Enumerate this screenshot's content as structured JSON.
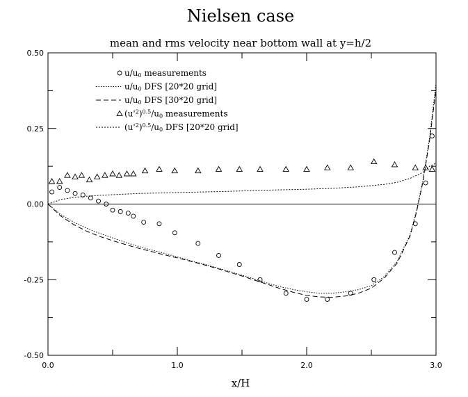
{
  "chart_data": {
    "type": "line",
    "title": "Nielsen case",
    "subtitle": "mean and rms velocity near bottom wall at y=h/2",
    "xlabel": "x/H",
    "ylabel": "",
    "xlim": [
      0.0,
      3.0
    ],
    "ylim": [
      -0.5,
      0.5
    ],
    "x_ticks": [
      "0.0",
      "1.0",
      "2.0",
      "3.0"
    ],
    "y_ticks": [
      "-0.50",
      "-0.25",
      "0.00",
      "0.25",
      "0.50"
    ],
    "legend_position": "top-left",
    "series": [
      {
        "name": "u/u0 measurements",
        "legend": {
          "main": "u/u",
          "sub": "0",
          "tail": " measurements"
        },
        "style": "circle",
        "x": [
          0.03,
          0.09,
          0.15,
          0.21,
          0.27,
          0.33,
          0.39,
          0.45,
          0.5,
          0.56,
          0.62,
          0.66,
          0.74,
          0.86,
          0.98,
          1.16,
          1.32,
          1.48,
          1.64,
          1.84,
          2.0,
          2.16,
          2.34,
          2.52,
          2.68,
          2.84,
          2.92,
          2.97
        ],
        "y": [
          0.04,
          0.055,
          0.045,
          0.035,
          0.03,
          0.02,
          0.01,
          0.0,
          -0.02,
          -0.025,
          -0.03,
          -0.04,
          -0.06,
          -0.065,
          -0.095,
          -0.13,
          -0.17,
          -0.2,
          -0.25,
          -0.295,
          -0.315,
          -0.315,
          -0.295,
          -0.25,
          -0.16,
          -0.065,
          0.07,
          0.225
        ]
      },
      {
        "name": "u/u0 DFS [20*20 grid]",
        "legend": {
          "main": "u/u",
          "sub": "0",
          "tail": " DFS [20*20 grid]"
        },
        "style": "dotted",
        "x": [
          0.0,
          0.1,
          0.2,
          0.3,
          0.4,
          0.5,
          0.6,
          0.7,
          0.8,
          0.9,
          1.0,
          1.1,
          1.2,
          1.3,
          1.4,
          1.5,
          1.6,
          1.7,
          1.8,
          1.9,
          2.0,
          2.1,
          2.2,
          2.3,
          2.4,
          2.5,
          2.6,
          2.7,
          2.8,
          2.85,
          2.9,
          2.95,
          3.0
        ],
        "y": [
          0.0,
          -0.035,
          -0.06,
          -0.08,
          -0.097,
          -0.112,
          -0.127,
          -0.14,
          -0.152,
          -0.163,
          -0.175,
          -0.187,
          -0.198,
          -0.21,
          -0.222,
          -0.235,
          -0.248,
          -0.262,
          -0.274,
          -0.283,
          -0.29,
          -0.295,
          -0.295,
          -0.29,
          -0.283,
          -0.27,
          -0.24,
          -0.19,
          -0.1,
          -0.02,
          0.08,
          0.22,
          0.4
        ]
      },
      {
        "name": "u/u0 DFS [30*20 grid]",
        "legend": {
          "main": "u/u",
          "sub": "0",
          "tail": " DFS [30*20 grid]"
        },
        "style": "dashed",
        "x": [
          0.0,
          0.1,
          0.2,
          0.3,
          0.4,
          0.5,
          0.6,
          0.7,
          0.8,
          0.9,
          1.0,
          1.1,
          1.2,
          1.3,
          1.4,
          1.5,
          1.6,
          1.7,
          1.8,
          1.9,
          2.0,
          2.1,
          2.2,
          2.3,
          2.4,
          2.5,
          2.6,
          2.7,
          2.8,
          2.85,
          2.9,
          2.95,
          3.0
        ],
        "y": [
          0.0,
          -0.04,
          -0.068,
          -0.09,
          -0.107,
          -0.121,
          -0.134,
          -0.146,
          -0.157,
          -0.168,
          -0.178,
          -0.189,
          -0.2,
          -0.212,
          -0.225,
          -0.238,
          -0.252,
          -0.266,
          -0.28,
          -0.292,
          -0.302,
          -0.307,
          -0.308,
          -0.304,
          -0.295,
          -0.278,
          -0.245,
          -0.195,
          -0.105,
          -0.025,
          0.075,
          0.21,
          0.38
        ]
      },
      {
        "name": "(u'2)0.5/u0 measurements",
        "legend": {
          "main": "(u'",
          "sup": "2",
          "mid": ")",
          "sup2": "0.5",
          "main2": "/u",
          "sub": "0",
          "tail": " measurements"
        },
        "style": "triangle",
        "x": [
          0.03,
          0.09,
          0.15,
          0.21,
          0.26,
          0.32,
          0.38,
          0.44,
          0.5,
          0.55,
          0.61,
          0.66,
          0.75,
          0.86,
          0.98,
          1.16,
          1.32,
          1.48,
          1.64,
          1.84,
          2.0,
          2.16,
          2.34,
          2.52,
          2.68,
          2.84,
          2.92,
          2.97
        ],
        "y": [
          0.075,
          0.075,
          0.095,
          0.09,
          0.095,
          0.08,
          0.09,
          0.095,
          0.1,
          0.095,
          0.1,
          0.1,
          0.11,
          0.115,
          0.11,
          0.11,
          0.115,
          0.115,
          0.115,
          0.115,
          0.115,
          0.12,
          0.12,
          0.14,
          0.13,
          0.12,
          0.12,
          0.115
        ]
      },
      {
        "name": "(u'2)0.5/u0 DFS [20*20 grid]",
        "legend": {
          "main": "(u'",
          "sup": "2",
          "mid": ")",
          "sup2": "0.5",
          "main2": "/u",
          "sub": "0",
          "tail": " DFS [20*20 grid]"
        },
        "style": "dotted2",
        "x": [
          0.0,
          0.1,
          0.2,
          0.3,
          0.4,
          0.5,
          0.6,
          0.7,
          0.8,
          0.9,
          1.0,
          1.2,
          1.4,
          1.6,
          1.8,
          2.0,
          2.2,
          2.4,
          2.6,
          2.7,
          2.8,
          2.9,
          2.95,
          3.0
        ],
        "y": [
          0.0,
          0.015,
          0.022,
          0.026,
          0.029,
          0.031,
          0.033,
          0.035,
          0.036,
          0.037,
          0.038,
          0.04,
          0.042,
          0.045,
          0.047,
          0.049,
          0.052,
          0.057,
          0.065,
          0.072,
          0.085,
          0.105,
          0.125,
          0.135
        ]
      }
    ]
  }
}
